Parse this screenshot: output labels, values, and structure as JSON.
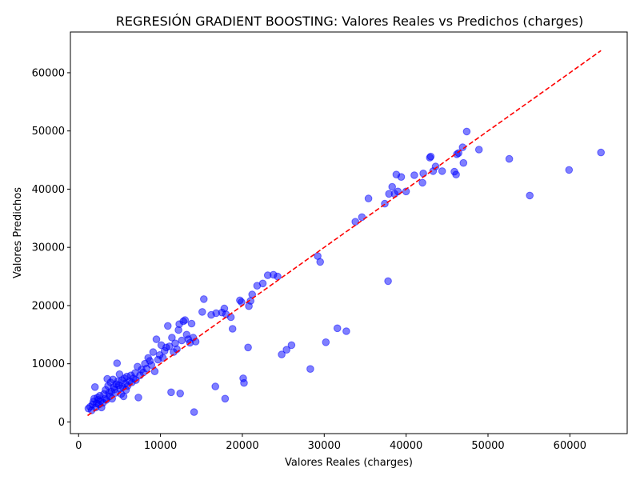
{
  "chart_data": {
    "type": "scatter",
    "title": "REGRESIÓN GRADIENT BOOSTING: Valores Reales vs Predichos (charges)",
    "xlabel": "Valores Reales (charges)",
    "ylabel": "Valores Predichos",
    "xlim": [
      -1000,
      67000
    ],
    "ylim": [
      -2000,
      67000
    ],
    "xticks": [
      0,
      10000,
      20000,
      30000,
      40000,
      50000,
      60000
    ],
    "yticks": [
      0,
      10000,
      20000,
      30000,
      40000,
      50000,
      60000
    ],
    "grid": false,
    "legend": "none",
    "colors": {
      "points": "#0000ff",
      "reference_line": "#ff0000"
    },
    "reference_line": {
      "style": "dashed",
      "x": [
        1100,
        63800
      ],
      "y": [
        1100,
        63800
      ]
    },
    "points": [
      [
        1200,
        2300
      ],
      [
        1400,
        2600
      ],
      [
        1600,
        2000
      ],
      [
        1700,
        3000
      ],
      [
        1800,
        3500
      ],
      [
        1900,
        4000
      ],
      [
        2000,
        6000
      ],
      [
        2100,
        2500
      ],
      [
        2200,
        3200
      ],
      [
        2300,
        4200
      ],
      [
        2400,
        3800
      ],
      [
        2500,
        3000
      ],
      [
        2600,
        4500
      ],
      [
        2700,
        3600
      ],
      [
        2800,
        2500
      ],
      [
        3000,
        3300
      ],
      [
        3100,
        4800
      ],
      [
        3200,
        4000
      ],
      [
        3300,
        5500
      ],
      [
        3400,
        3800
      ],
      [
        3500,
        7400
      ],
      [
        3600,
        6200
      ],
      [
        3700,
        5000
      ],
      [
        3800,
        4400
      ],
      [
        3900,
        6800
      ],
      [
        4000,
        5200
      ],
      [
        4100,
        4000
      ],
      [
        4200,
        7300
      ],
      [
        4300,
        6000
      ],
      [
        4400,
        5600
      ],
      [
        4500,
        5000
      ],
      [
        4600,
        6500
      ],
      [
        4700,
        10100
      ],
      [
        4800,
        7000
      ],
      [
        4900,
        6300
      ],
      [
        5000,
        8200
      ],
      [
        5100,
        5800
      ],
      [
        5200,
        4800
      ],
      [
        5300,
        7200
      ],
      [
        5400,
        6000
      ],
      [
        5500,
        4400
      ],
      [
        5600,
        7500
      ],
      [
        5700,
        6600
      ],
      [
        5800,
        5500
      ],
      [
        5900,
        7800
      ],
      [
        6000,
        6200
      ],
      [
        6200,
        7000
      ],
      [
        6400,
        8000
      ],
      [
        6500,
        6800
      ],
      [
        6700,
        7500
      ],
      [
        6900,
        8400
      ],
      [
        7000,
        7200
      ],
      [
        7200,
        9500
      ],
      [
        7300,
        4200
      ],
      [
        7500,
        8000
      ],
      [
        7700,
        9000
      ],
      [
        7900,
        8500
      ],
      [
        8100,
        10000
      ],
      [
        8300,
        9200
      ],
      [
        8500,
        11000
      ],
      [
        8700,
        10500
      ],
      [
        8900,
        9800
      ],
      [
        9100,
        12000
      ],
      [
        9300,
        8700
      ],
      [
        9500,
        14200
      ],
      [
        9700,
        10700
      ],
      [
        9900,
        11500
      ],
      [
        10100,
        13200
      ],
      [
        10300,
        11000
      ],
      [
        10500,
        12200
      ],
      [
        10700,
        12800
      ],
      [
        10900,
        16500
      ],
      [
        11100,
        13000
      ],
      [
        11300,
        5100
      ],
      [
        11400,
        14500
      ],
      [
        11600,
        12000
      ],
      [
        11800,
        13500
      ],
      [
        12000,
        12500
      ],
      [
        12200,
        15800
      ],
      [
        12300,
        16800
      ],
      [
        12400,
        4900
      ],
      [
        12600,
        14000
      ],
      [
        12800,
        17300
      ],
      [
        13000,
        17500
      ],
      [
        13200,
        15000
      ],
      [
        13400,
        14200
      ],
      [
        13600,
        13600
      ],
      [
        13800,
        16900
      ],
      [
        14000,
        14500
      ],
      [
        14100,
        1700
      ],
      [
        14300,
        13800
      ],
      [
        15100,
        18900
      ],
      [
        15300,
        21100
      ],
      [
        16200,
        18400
      ],
      [
        16700,
        6100
      ],
      [
        16800,
        18700
      ],
      [
        17500,
        18800
      ],
      [
        17800,
        19500
      ],
      [
        17900,
        4000
      ],
      [
        18000,
        18500
      ],
      [
        18600,
        18000
      ],
      [
        18800,
        16000
      ],
      [
        19700,
        20900
      ],
      [
        19900,
        20600
      ],
      [
        20100,
        7500
      ],
      [
        20200,
        6700
      ],
      [
        20700,
        12800
      ],
      [
        20800,
        19900
      ],
      [
        21000,
        20800
      ],
      [
        21200,
        21900
      ],
      [
        21800,
        23400
      ],
      [
        22500,
        23800
      ],
      [
        23100,
        25200
      ],
      [
        23800,
        25300
      ],
      [
        24300,
        25000
      ],
      [
        24800,
        11600
      ],
      [
        25400,
        12400
      ],
      [
        26000,
        13200
      ],
      [
        28300,
        9100
      ],
      [
        29200,
        28500
      ],
      [
        29500,
        27500
      ],
      [
        30200,
        13700
      ],
      [
        31600,
        16100
      ],
      [
        32700,
        15600
      ],
      [
        33800,
        34400
      ],
      [
        34600,
        35200
      ],
      [
        35400,
        38400
      ],
      [
        37400,
        37500
      ],
      [
        37800,
        24200
      ],
      [
        37900,
        39200
      ],
      [
        38300,
        40400
      ],
      [
        38600,
        39200
      ],
      [
        38800,
        42500
      ],
      [
        39000,
        39600
      ],
      [
        39400,
        42100
      ],
      [
        40000,
        39600
      ],
      [
        41000,
        42400
      ],
      [
        42000,
        41100
      ],
      [
        42100,
        42700
      ],
      [
        42900,
        45400
      ],
      [
        43000,
        45600
      ],
      [
        43300,
        43100
      ],
      [
        43600,
        43900
      ],
      [
        44400,
        43100
      ],
      [
        45900,
        43000
      ],
      [
        46100,
        42500
      ],
      [
        46200,
        46000
      ],
      [
        46400,
        46200
      ],
      [
        46900,
        47200
      ],
      [
        47000,
        44500
      ],
      [
        47400,
        49900
      ],
      [
        48900,
        46800
      ],
      [
        52600,
        45200
      ],
      [
        55100,
        38900
      ],
      [
        59900,
        43300
      ],
      [
        63800,
        46300
      ]
    ]
  }
}
